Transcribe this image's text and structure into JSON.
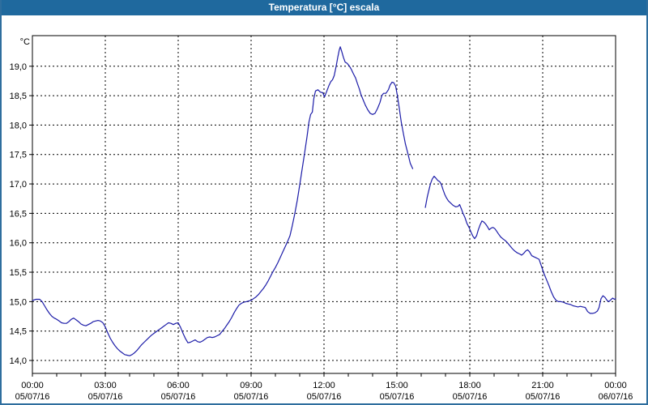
{
  "window": {
    "title": "Temperatura [°C] escala"
  },
  "colors": {
    "title_bar": "#1f699e",
    "window_border": "#2e6e9e",
    "line": "#1c1ca8",
    "grid": "#000000",
    "text": "#000000",
    "plot_background": "#ffffff"
  },
  "chart_data": {
    "type": "line",
    "title": "Temperatura [°C] escala",
    "xlabel": "",
    "ylabel": "°C",
    "grid": "dashed",
    "legend": "none",
    "y_axis": {
      "min": 14.0,
      "max": 19.0,
      "step": 0.5,
      "values": [
        19.0,
        18.5,
        18.0,
        17.5,
        17.0,
        16.5,
        16.0,
        15.5,
        15.0,
        14.5,
        14.0
      ],
      "tick_labels": [
        "19,0",
        "18,5",
        "18,0",
        "17,5",
        "17,0",
        "16,5",
        "16,0",
        "15,5",
        "15,0",
        "14,5",
        "14,0"
      ]
    },
    "x_axis": {
      "start_hour": 0,
      "end_hour": 24,
      "minor_tick_every_hours": 1,
      "gridline_hours": [
        3,
        6,
        9,
        12,
        15,
        18,
        21
      ],
      "ticks": [
        {
          "hour": 0,
          "time": "00:00",
          "date": "05/07/16"
        },
        {
          "hour": 3,
          "time": "03:00",
          "date": "05/07/16"
        },
        {
          "hour": 6,
          "time": "06:00",
          "date": "05/07/16"
        },
        {
          "hour": 9,
          "time": "09:00",
          "date": "05/07/16"
        },
        {
          "hour": 12,
          "time": "12:00",
          "date": "05/07/16"
        },
        {
          "hour": 15,
          "time": "15:00",
          "date": "05/07/16"
        },
        {
          "hour": 18,
          "time": "18:00",
          "date": "05/07/16"
        },
        {
          "hour": 21,
          "time": "21:00",
          "date": "05/07/16"
        },
        {
          "hour": 24,
          "time": "00:00",
          "date": "06/07/16"
        }
      ]
    },
    "series": [
      {
        "name": "Temperatura",
        "color": "#1c1ca8",
        "segments": [
          [
            [
              0,
              15.02
            ],
            [
              0.15,
              15.04
            ],
            [
              0.3,
              15.04
            ],
            [
              0.4,
              15.0
            ],
            [
              0.5,
              14.93
            ],
            [
              0.6,
              14.86
            ],
            [
              0.7,
              14.8
            ],
            [
              0.8,
              14.75
            ],
            [
              0.9,
              14.72
            ],
            [
              1.0,
              14.7
            ],
            [
              1.1,
              14.67
            ],
            [
              1.2,
              14.64
            ],
            [
              1.3,
              14.63
            ],
            [
              1.4,
              14.63
            ],
            [
              1.5,
              14.66
            ],
            [
              1.6,
              14.7
            ],
            [
              1.7,
              14.72
            ],
            [
              1.8,
              14.69
            ],
            [
              1.9,
              14.66
            ],
            [
              2.0,
              14.62
            ],
            [
              2.1,
              14.6
            ],
            [
              2.2,
              14.59
            ],
            [
              2.3,
              14.61
            ],
            [
              2.4,
              14.63
            ],
            [
              2.5,
              14.66
            ],
            [
              2.6,
              14.67
            ],
            [
              2.7,
              14.68
            ],
            [
              2.8,
              14.67
            ],
            [
              2.9,
              14.64
            ],
            [
              3.0,
              14.57
            ],
            [
              3.1,
              14.47
            ],
            [
              3.2,
              14.38
            ],
            [
              3.3,
              14.31
            ],
            [
              3.4,
              14.25
            ],
            [
              3.5,
              14.2
            ],
            [
              3.6,
              14.16
            ],
            [
              3.7,
              14.13
            ],
            [
              3.8,
              14.1
            ],
            [
              3.9,
              14.09
            ],
            [
              4.0,
              14.08
            ],
            [
              4.1,
              14.1
            ],
            [
              4.2,
              14.13
            ],
            [
              4.3,
              14.17
            ],
            [
              4.4,
              14.22
            ],
            [
              4.5,
              14.27
            ],
            [
              4.6,
              14.31
            ],
            [
              4.7,
              14.35
            ],
            [
              4.8,
              14.39
            ],
            [
              4.9,
              14.43
            ],
            [
              5.0,
              14.46
            ],
            [
              5.1,
              14.49
            ],
            [
              5.2,
              14.52
            ],
            [
              5.3,
              14.55
            ],
            [
              5.4,
              14.58
            ],
            [
              5.5,
              14.61
            ],
            [
              5.6,
              14.64
            ],
            [
              5.7,
              14.63
            ],
            [
              5.8,
              14.61
            ],
            [
              5.9,
              14.63
            ],
            [
              6.0,
              14.64
            ],
            [
              6.1,
              14.56
            ],
            [
              6.2,
              14.46
            ],
            [
              6.3,
              14.37
            ],
            [
              6.4,
              14.3
            ],
            [
              6.5,
              14.31
            ],
            [
              6.6,
              14.33
            ],
            [
              6.7,
              14.35
            ],
            [
              6.8,
              14.32
            ],
            [
              6.9,
              14.31
            ],
            [
              7.0,
              14.33
            ],
            [
              7.1,
              14.36
            ],
            [
              7.2,
              14.39
            ],
            [
              7.3,
              14.4
            ],
            [
              7.4,
              14.39
            ],
            [
              7.5,
              14.4
            ],
            [
              7.6,
              14.42
            ],
            [
              7.7,
              14.44
            ],
            [
              7.8,
              14.49
            ],
            [
              7.9,
              14.54
            ],
            [
              8.0,
              14.6
            ],
            [
              8.1,
              14.66
            ],
            [
              8.2,
              14.73
            ],
            [
              8.3,
              14.81
            ],
            [
              8.4,
              14.88
            ],
            [
              8.5,
              14.94
            ],
            [
              8.6,
              14.97
            ],
            [
              8.7,
              14.99
            ],
            [
              8.8,
              15.0
            ],
            [
              8.9,
              15.01
            ],
            [
              9.0,
              15.02
            ],
            [
              9.1,
              15.05
            ],
            [
              9.2,
              15.08
            ],
            [
              9.3,
              15.12
            ],
            [
              9.4,
              15.17
            ],
            [
              9.5,
              15.22
            ],
            [
              9.6,
              15.28
            ],
            [
              9.7,
              15.35
            ],
            [
              9.8,
              15.43
            ],
            [
              9.9,
              15.51
            ],
            [
              10.0,
              15.58
            ],
            [
              10.1,
              15.66
            ],
            [
              10.2,
              15.75
            ],
            [
              10.3,
              15.84
            ],
            [
              10.4,
              15.93
            ],
            [
              10.5,
              16.02
            ],
            [
              10.6,
              16.12
            ],
            [
              10.7,
              16.3
            ],
            [
              10.8,
              16.5
            ],
            [
              10.9,
              16.72
            ],
            [
              11.0,
              16.98
            ],
            [
              11.1,
              17.25
            ],
            [
              11.2,
              17.52
            ],
            [
              11.3,
              17.8
            ],
            [
              11.38,
              18.05
            ],
            [
              11.45,
              18.18
            ],
            [
              11.52,
              18.22
            ],
            [
              11.58,
              18.45
            ],
            [
              11.65,
              18.58
            ],
            [
              11.75,
              18.6
            ],
            [
              11.85,
              18.56
            ],
            [
              11.95,
              18.55
            ],
            [
              12.02,
              18.48
            ],
            [
              12.1,
              18.56
            ],
            [
              12.2,
              18.67
            ],
            [
              12.28,
              18.74
            ],
            [
              12.35,
              18.77
            ],
            [
              12.42,
              18.84
            ],
            [
              12.5,
              19.0
            ],
            [
              12.57,
              19.16
            ],
            [
              12.63,
              19.28
            ],
            [
              12.67,
              19.33
            ],
            [
              12.73,
              19.25
            ],
            [
              12.8,
              19.15
            ],
            [
              12.87,
              19.07
            ],
            [
              12.95,
              19.05
            ],
            [
              13.05,
              19.0
            ],
            [
              13.12,
              18.95
            ],
            [
              13.2,
              18.88
            ],
            [
              13.3,
              18.8
            ],
            [
              13.38,
              18.7
            ],
            [
              13.45,
              18.62
            ],
            [
              13.52,
              18.52
            ],
            [
              13.6,
              18.44
            ],
            [
              13.7,
              18.34
            ],
            [
              13.8,
              18.26
            ],
            [
              13.9,
              18.2
            ],
            [
              14.0,
              18.18
            ],
            [
              14.1,
              18.2
            ],
            [
              14.2,
              18.28
            ],
            [
              14.3,
              18.38
            ],
            [
              14.38,
              18.5
            ],
            [
              14.45,
              18.54
            ],
            [
              14.55,
              18.54
            ],
            [
              14.65,
              18.6
            ],
            [
              14.72,
              18.68
            ],
            [
              14.8,
              18.73
            ],
            [
              14.87,
              18.72
            ],
            [
              14.95,
              18.66
            ],
            [
              15.02,
              18.5
            ],
            [
              15.1,
              18.28
            ],
            [
              15.18,
              18.05
            ],
            [
              15.27,
              17.85
            ],
            [
              15.35,
              17.68
            ],
            [
              15.45,
              17.52
            ],
            [
              15.55,
              17.35
            ],
            [
              15.65,
              17.26
            ]
          ],
          [
            [
              16.17,
              16.6
            ],
            [
              16.25,
              16.78
            ],
            [
              16.32,
              16.9
            ],
            [
              16.38,
              17.0
            ],
            [
              16.45,
              17.08
            ],
            [
              16.53,
              17.13
            ],
            [
              16.6,
              17.1
            ],
            [
              16.68,
              17.06
            ],
            [
              16.76,
              17.04
            ],
            [
              16.83,
              16.99
            ],
            [
              16.9,
              16.9
            ],
            [
              16.97,
              16.82
            ],
            [
              17.03,
              16.77
            ],
            [
              17.12,
              16.71
            ],
            [
              17.2,
              16.68
            ],
            [
              17.3,
              16.64
            ],
            [
              17.42,
              16.61
            ],
            [
              17.52,
              16.62
            ],
            [
              17.58,
              16.65
            ],
            [
              17.65,
              16.58
            ],
            [
              17.72,
              16.5
            ],
            [
              17.8,
              16.43
            ],
            [
              17.88,
              16.33
            ],
            [
              17.97,
              16.26
            ],
            [
              18.05,
              16.18
            ],
            [
              18.13,
              16.11
            ],
            [
              18.2,
              16.07
            ],
            [
              18.28,
              16.12
            ],
            [
              18.35,
              16.22
            ],
            [
              18.43,
              16.31
            ],
            [
              18.5,
              16.37
            ],
            [
              18.58,
              16.35
            ],
            [
              18.65,
              16.32
            ],
            [
              18.73,
              16.27
            ],
            [
              18.8,
              16.22
            ],
            [
              18.88,
              16.25
            ],
            [
              18.95,
              16.26
            ],
            [
              19.03,
              16.24
            ],
            [
              19.1,
              16.2
            ],
            [
              19.18,
              16.15
            ],
            [
              19.27,
              16.1
            ],
            [
              19.35,
              16.07
            ],
            [
              19.45,
              16.04
            ],
            [
              19.55,
              16.0
            ],
            [
              19.65,
              15.95
            ],
            [
              19.75,
              15.9
            ],
            [
              19.85,
              15.86
            ],
            [
              19.95,
              15.83
            ],
            [
              20.05,
              15.81
            ],
            [
              20.13,
              15.79
            ],
            [
              20.22,
              15.82
            ],
            [
              20.3,
              15.86
            ],
            [
              20.38,
              15.88
            ],
            [
              20.45,
              15.85
            ],
            [
              20.55,
              15.78
            ],
            [
              20.65,
              15.76
            ],
            [
              20.75,
              15.74
            ],
            [
              20.85,
              15.72
            ],
            [
              20.95,
              15.6
            ],
            [
              21.05,
              15.48
            ],
            [
              21.15,
              15.38
            ],
            [
              21.25,
              15.28
            ],
            [
              21.35,
              15.17
            ],
            [
              21.45,
              15.08
            ],
            [
              21.55,
              15.02
            ],
            [
              21.65,
              15.0
            ],
            [
              21.75,
              15.0
            ],
            [
              21.85,
              14.99
            ],
            [
              21.95,
              14.97
            ],
            [
              22.05,
              14.96
            ],
            [
              22.15,
              14.95
            ],
            [
              22.25,
              14.93
            ],
            [
              22.35,
              14.92
            ],
            [
              22.45,
              14.91
            ],
            [
              22.55,
              14.92
            ],
            [
              22.65,
              14.91
            ],
            [
              22.75,
              14.9
            ],
            [
              22.85,
              14.83
            ],
            [
              22.95,
              14.8
            ],
            [
              23.05,
              14.8
            ],
            [
              23.15,
              14.81
            ],
            [
              23.25,
              14.84
            ],
            [
              23.32,
              14.9
            ],
            [
              23.4,
              15.05
            ],
            [
              23.48,
              15.1
            ],
            [
              23.57,
              15.07
            ],
            [
              23.65,
              15.02
            ],
            [
              23.72,
              15.0
            ],
            [
              23.8,
              15.03
            ],
            [
              23.88,
              15.06
            ],
            [
              23.95,
              15.04
            ],
            [
              24.0,
              15.05
            ]
          ]
        ]
      }
    ]
  }
}
